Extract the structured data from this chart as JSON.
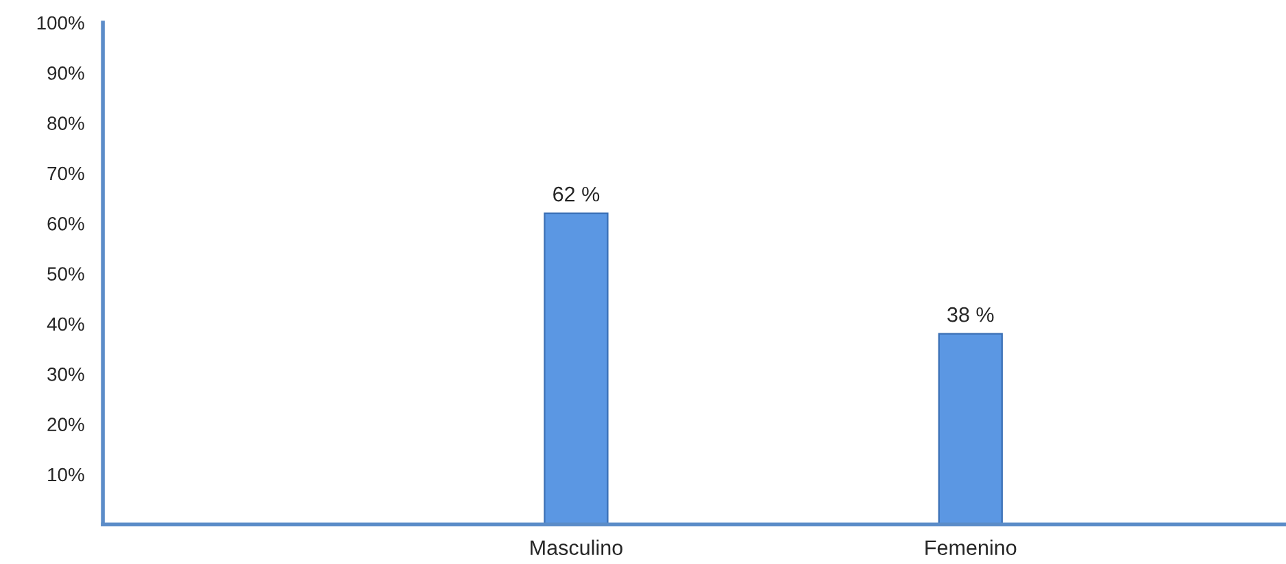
{
  "chart_data": {
    "type": "bar",
    "categories": [
      "Masculino",
      "Femenino"
    ],
    "values": [
      62,
      38
    ],
    "value_labels": [
      "62 %",
      "38 %"
    ],
    "color": "#5b97e3",
    "ylim": [
      0,
      100
    ],
    "yticks": [
      {
        "value": 10,
        "label": "10%"
      },
      {
        "value": 20,
        "label": "20%"
      },
      {
        "value": 30,
        "label": "30%"
      },
      {
        "value": 40,
        "label": "40%"
      },
      {
        "value": 50,
        "label": "50%"
      },
      {
        "value": 60,
        "label": "60%"
      },
      {
        "value": 70,
        "label": "70%"
      },
      {
        "value": 80,
        "label": "80%"
      },
      {
        "value": 90,
        "label": "90%"
      },
      {
        "value": 100,
        "label": "100%"
      }
    ],
    "grid": false
  }
}
